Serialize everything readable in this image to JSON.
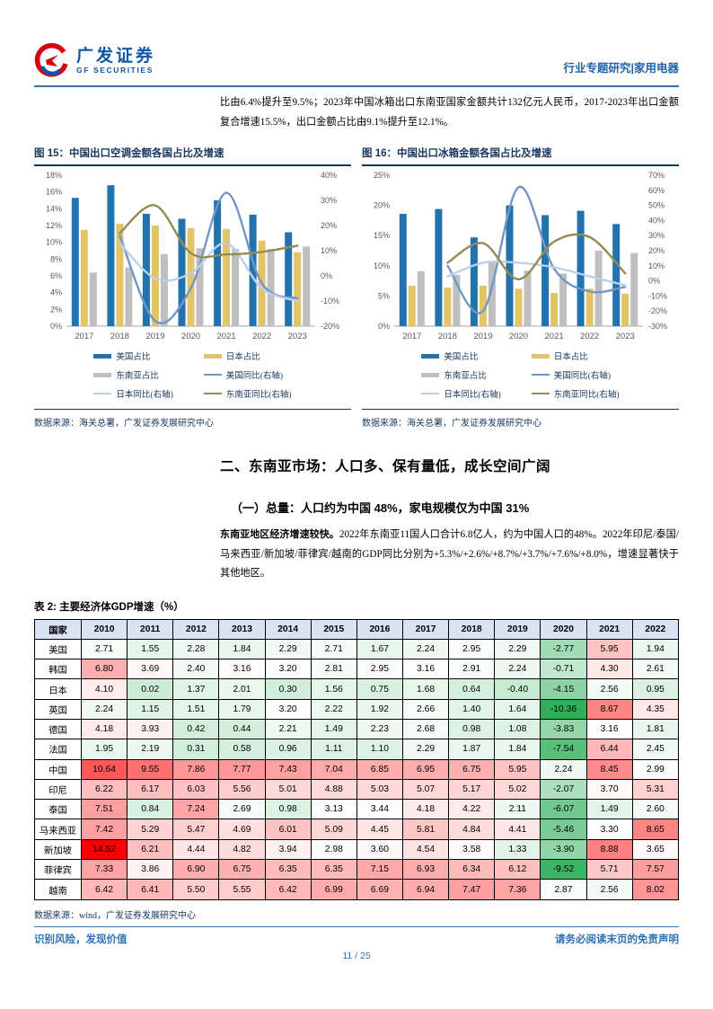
{
  "header": {
    "logo_cn": "广发证券",
    "logo_en": "GF SECURITIES",
    "right_text": "行业专题研究|家用电器",
    "accent_blue": "#2e74b5",
    "logo_blue": "#0e58a5",
    "logo_red": "#d7000f"
  },
  "intro_paragraph": "比由6.4%提升至9.5%；2023年中国冰箱出口东南亚国家金额共计132亿元人民币，2017-2023年出口金额复合增速15.5%，出口金额占比由9.1%提升至12.1%。",
  "figures": [
    {
      "title": "图 15：中国出口空调金额各国占比及增速",
      "source": "数据来源：海关总署，广发证券发展研究中心",
      "chart_data": {
        "type": "bar",
        "subtype": "bars+lines, dual axis",
        "categories": [
          "2017",
          "2018",
          "2019",
          "2020",
          "2021",
          "2022",
          "2023"
        ],
        "left_axis": {
          "min": 0,
          "max": 18,
          "step": 2,
          "suffix": "%"
        },
        "right_axis": {
          "min": -20,
          "max": 40,
          "step": 10,
          "suffix": "%"
        },
        "bar_series": [
          {
            "name": "美国占比",
            "color": "#2272ae",
            "values": [
              15.3,
              16.8,
              13.4,
              12.8,
              15.0,
              13.3,
              11.2
            ]
          },
          {
            "name": "日本占比",
            "color": "#e3c568",
            "values": [
              11.5,
              12.2,
              12.0,
              11.7,
              11.6,
              10.2,
              8.8
            ]
          },
          {
            "name": "东南亚占比",
            "color": "#bfbfbf",
            "values": [
              6.4,
              7.0,
              8.6,
              9.3,
              9.2,
              9.2,
              9.5
            ]
          }
        ],
        "line_series": [
          {
            "name": "美国同比(右轴)",
            "color": "#7396c8",
            "axis": "right",
            "values": [
              null,
              16,
              -18,
              -5,
              33,
              -3,
              -9
            ]
          },
          {
            "name": "日本同比(右轴)",
            "color": "#bdd0e9",
            "axis": "right",
            "values": [
              null,
              13,
              -1,
              1,
              13,
              -5,
              -10
            ]
          },
          {
            "name": "东南亚同比(右轴)",
            "color": "#948b52",
            "axis": "right",
            "values": [
              null,
              17,
              28,
              9,
              8.5,
              9.5,
              12
            ]
          }
        ],
        "legend_position": "bottom",
        "grid": false
      }
    },
    {
      "title": "图 16：中国出口冰箱金额各国占比及增速",
      "source": "数据来源：海关总署，广发证券发展研究中心",
      "chart_data": {
        "type": "bar",
        "subtype": "bars+lines, dual axis",
        "categories": [
          "2017",
          "2018",
          "2019",
          "2020",
          "2021",
          "2022",
          "2023"
        ],
        "left_axis": {
          "min": 0,
          "max": 25,
          "step": 5,
          "suffix": "%"
        },
        "right_axis": {
          "min": -30,
          "max": 70,
          "step": 10,
          "suffix": "%"
        },
        "bar_series": [
          {
            "name": "美国占比",
            "color": "#2272ae",
            "values": [
              18.6,
              19.4,
              14.7,
              20.0,
              18.4,
              19.1,
              16.9
            ]
          },
          {
            "name": "日本占比",
            "color": "#e3c568",
            "values": [
              6.7,
              6.4,
              6.7,
              6.2,
              5.5,
              6.2,
              5.4
            ]
          },
          {
            "name": "东南亚占比",
            "color": "#bfbfbf",
            "values": [
              9.1,
              8.5,
              10.8,
              9.2,
              8.7,
              12.5,
              12.1
            ]
          }
        ],
        "line_series": [
          {
            "name": "美国同比(右轴)",
            "color": "#7396c8",
            "axis": "right",
            "values": [
              null,
              10,
              -20,
              62,
              8,
              -7,
              -4
            ]
          },
          {
            "name": "日本同比(右轴)",
            "color": "#bdd0e9",
            "axis": "right",
            "values": [
              null,
              3,
              12,
              12,
              9,
              3,
              -3
            ]
          },
          {
            "name": "东南亚同比(右轴)",
            "color": "#948b52",
            "axis": "right",
            "values": [
              null,
              12,
              25,
              1,
              26,
              29,
              5
            ]
          }
        ],
        "legend_position": "bottom",
        "grid": false
      }
    }
  ],
  "section": {
    "h2": "二、东南亚市场：人口多、保有量低，成长空间广阔",
    "h3": "（一）总量：人口约为中国 48%，家电规模仅为中国 31%",
    "para_bold": "东南亚地区经济增速较快。",
    "para_rest": "2022年东南亚11国人口合计6.8亿人，约为中国人口的48%。2022年印尼/泰国/马来西亚/新加坡/菲律宾/越南的GDP同比分别为+5.3%/+2.6%/+8.7%/+3.7%/+7.6%/+8.0%，增速显著快于其他地区。"
  },
  "table": {
    "title": "表 2: 主要经济体GDP增速（%）",
    "source": "数据来源：wind，广发证券发展研究中心",
    "header_bg": "#dae3f3",
    "col_country": "国家",
    "years": [
      "2010",
      "2011",
      "2012",
      "2013",
      "2014",
      "2015",
      "2016",
      "2017",
      "2018",
      "2019",
      "2020",
      "2021",
      "2022"
    ],
    "rows": [
      {
        "country": "美国",
        "values": [
          2.71,
          1.55,
          2.28,
          1.84,
          2.29,
          2.71,
          1.67,
          2.24,
          2.95,
          2.29,
          -2.77,
          5.95,
          1.94
        ]
      },
      {
        "country": "韩国",
        "values": [
          6.8,
          3.69,
          2.4,
          3.16,
          3.2,
          2.81,
          2.95,
          3.16,
          2.91,
          2.24,
          -0.71,
          4.3,
          2.61
        ]
      },
      {
        "country": "日本",
        "values": [
          4.1,
          0.02,
          1.37,
          2.01,
          0.3,
          1.56,
          0.75,
          1.68,
          0.64,
          -0.4,
          -4.15,
          2.56,
          0.95
        ]
      },
      {
        "country": "英国",
        "values": [
          2.24,
          1.15,
          1.51,
          1.79,
          3.2,
          2.22,
          1.92,
          2.66,
          1.4,
          1.64,
          -10.36,
          8.67,
          4.35
        ]
      },
      {
        "country": "德国",
        "values": [
          4.18,
          3.93,
          0.42,
          0.44,
          2.21,
          1.49,
          2.23,
          2.68,
          0.98,
          1.08,
          -3.83,
          3.16,
          1.81
        ]
      },
      {
        "country": "法国",
        "values": [
          1.95,
          2.19,
          0.31,
          0.58,
          0.96,
          1.11,
          1.1,
          2.29,
          1.87,
          1.84,
          -7.54,
          6.44,
          2.45
        ]
      },
      {
        "country": "中国",
        "values": [
          10.64,
          9.55,
          7.86,
          7.77,
          7.43,
          7.04,
          6.85,
          6.95,
          6.75,
          5.95,
          2.24,
          8.45,
          2.99
        ]
      },
      {
        "country": "印尼",
        "values": [
          6.22,
          6.17,
          6.03,
          5.56,
          5.01,
          4.88,
          5.03,
          5.07,
          5.17,
          5.02,
          -2.07,
          3.7,
          5.31
        ]
      },
      {
        "country": "泰国",
        "values": [
          7.51,
          0.84,
          7.24,
          2.69,
          0.98,
          3.13,
          3.44,
          4.18,
          4.22,
          2.11,
          -6.07,
          1.49,
          2.6
        ]
      },
      {
        "country": "马来西亚",
        "values": [
          7.42,
          5.29,
          5.47,
          4.69,
          6.01,
          5.09,
          4.45,
          5.81,
          4.84,
          4.41,
          -5.46,
          3.3,
          8.65
        ]
      },
      {
        "country": "新加坡",
        "values": [
          14.52,
          6.21,
          4.44,
          4.82,
          3.94,
          2.98,
          3.6,
          4.54,
          3.58,
          1.33,
          -3.9,
          8.88,
          3.65
        ]
      },
      {
        "country": "菲律宾",
        "values": [
          7.33,
          3.86,
          6.9,
          6.75,
          6.35,
          6.35,
          7.15,
          6.93,
          6.34,
          6.12,
          -9.52,
          5.71,
          7.57
        ]
      },
      {
        "country": "越南",
        "values": [
          6.42,
          6.41,
          5.5,
          5.55,
          6.42,
          6.99,
          6.69,
          6.94,
          7.47,
          7.36,
          2.87,
          2.56,
          8.02
        ]
      }
    ],
    "color_scale": {
      "min": -10.36,
      "mid": 3.3,
      "max": 14.52,
      "min_color": "#2eb05a",
      "mid_color": "#ffffff",
      "max_color": "#ff0000"
    }
  },
  "footer": {
    "left": "识别风险，发现价值",
    "right": "请务必阅读末页的免责声明",
    "page": "11 / 25"
  }
}
